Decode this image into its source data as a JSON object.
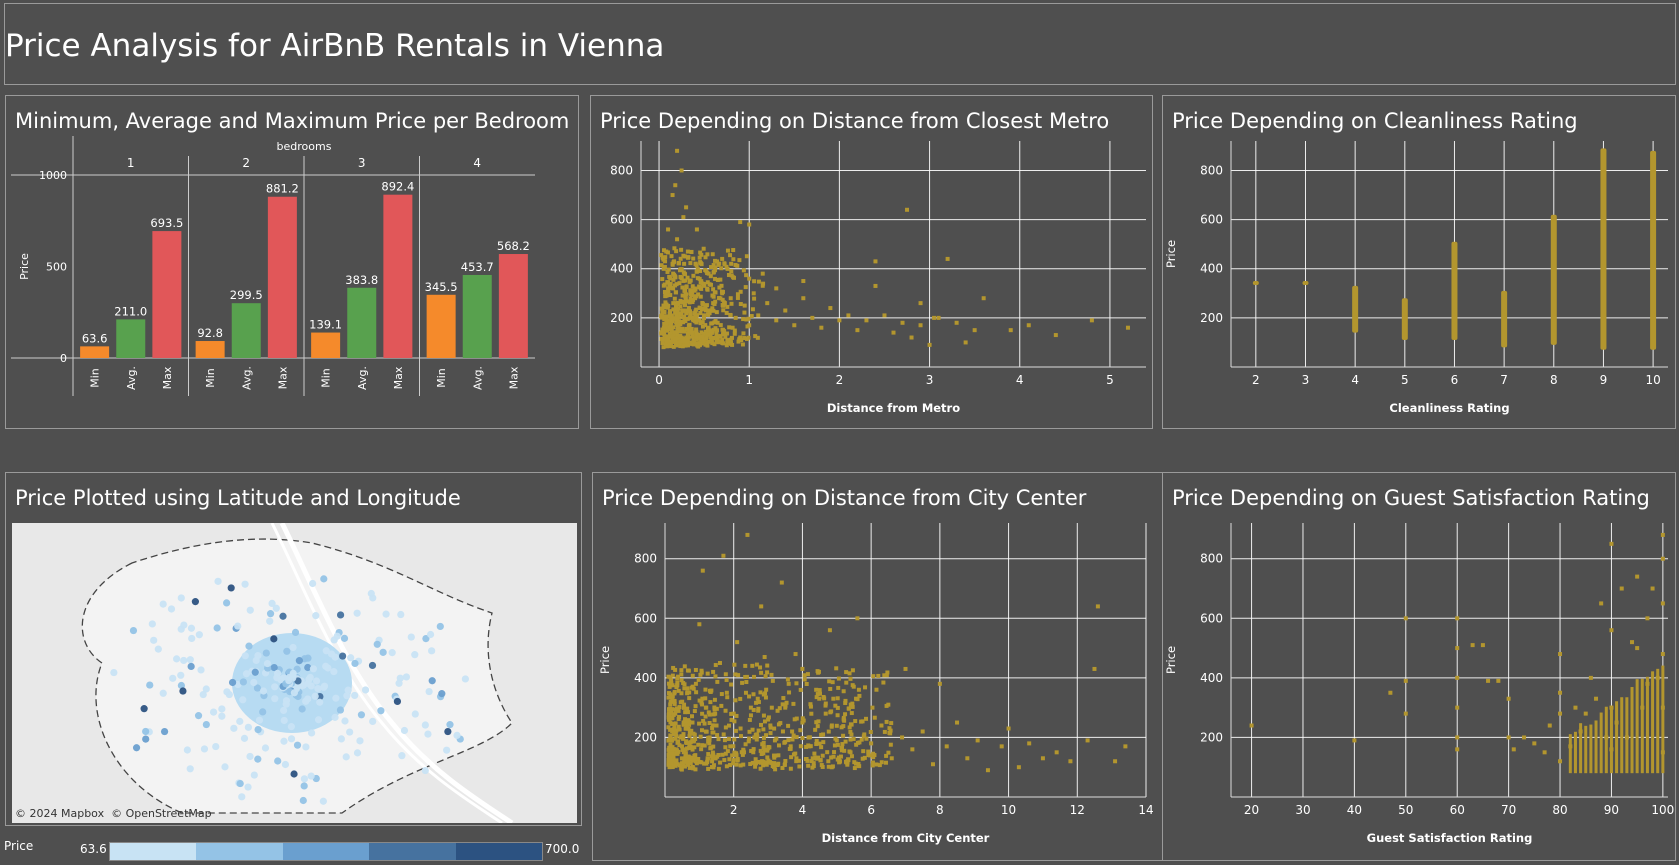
{
  "dashboard": {
    "title": "Price Analysis for AirBnB Rentals in Vienna"
  },
  "colors": {
    "background": "#4f4f4f",
    "scatter": "#b3962e",
    "min": "#f58a2b",
    "avg": "#58a14e",
    "max": "#e15759",
    "grid": "#ffffff"
  },
  "panels": {
    "bars": {
      "title": "Minimum, Average and Maximum Price per Bedroom"
    },
    "metro": {
      "title": "Price Depending on Distance from Closest Metro"
    },
    "clean": {
      "title": "Price Depending on Cleanliness Rating"
    },
    "map": {
      "title": "Price Plotted using Latitude and Longitude",
      "attribution": "© 2024 Mapbox  © OpenStreetMap"
    },
    "center": {
      "title": "Price Depending on Distance from City Center"
    },
    "guest": {
      "title": "Price Depending on Guest Satisfaction Rating"
    }
  },
  "legend": {
    "label": "Price",
    "min": "63.6",
    "max": "700.0",
    "colors": [
      "#c8e3f4",
      "#94c3e6",
      "#6a9fcf",
      "#46729f",
      "#2c5281"
    ]
  },
  "chart_data": [
    {
      "type": "bar",
      "id": "bars",
      "title": "Minimum, Average and Maximum Price per Bedroom",
      "column_header": "bedrooms",
      "bedrooms": [
        "1",
        "2",
        "3",
        "4"
      ],
      "measures": [
        "Min",
        "Avg.",
        "Max"
      ],
      "series": [
        {
          "name": "Min",
          "values": [
            63.6,
            92.8,
            139.1,
            345.5
          ]
        },
        {
          "name": "Avg.",
          "values": [
            211.0,
            299.5,
            383.8,
            453.7
          ]
        },
        {
          "name": "Max",
          "values": [
            693.5,
            881.2,
            892.4,
            568.2
          ]
        }
      ],
      "value_labels": [
        [
          "63.6",
          "211.0",
          "693.5"
        ],
        [
          "92.8",
          "299.5",
          "881.2"
        ],
        [
          "139.1",
          "383.8",
          "892.4"
        ],
        [
          "345.5",
          "453.7",
          "568.2"
        ]
      ],
      "ylabel": "Price",
      "yticks": [
        "0",
        "500",
        "1000"
      ],
      "ylim": [
        0,
        1000
      ]
    },
    {
      "type": "scatter",
      "id": "metro",
      "title": "Price Depending on Distance from Closest Metro",
      "xlabel": "Distance from Metro",
      "ylabel": "Price",
      "xlim": [
        -0.2,
        5.4
      ],
      "ylim": [
        0,
        920
      ],
      "xticks": [
        "0",
        "1",
        "2",
        "3",
        "4",
        "5"
      ],
      "yticks": [
        "200",
        "400",
        "600",
        "800"
      ],
      "points": [
        [
          0.05,
          250
        ],
        [
          0.1,
          320
        ],
        [
          0.12,
          180
        ],
        [
          0.15,
          420
        ],
        [
          0.18,
          260
        ],
        [
          0.2,
          520
        ],
        [
          0.22,
          200
        ],
        [
          0.25,
          360
        ],
        [
          0.27,
          610
        ],
        [
          0.3,
          230
        ],
        [
          0.32,
          470
        ],
        [
          0.35,
          300
        ],
        [
          0.38,
          190
        ],
        [
          0.4,
          280
        ],
        [
          0.42,
          560
        ],
        [
          0.45,
          240
        ],
        [
          0.48,
          340
        ],
        [
          0.5,
          210
        ],
        [
          0.55,
          380
        ],
        [
          0.6,
          260
        ],
        [
          0.65,
          180
        ],
        [
          0.7,
          300
        ],
        [
          0.75,
          220
        ],
        [
          0.8,
          420
        ],
        [
          0.85,
          200
        ],
        [
          0.9,
          590
        ],
        [
          0.95,
          250
        ],
        [
          1.0,
          170
        ],
        [
          1.05,
          300
        ],
        [
          1.1,
          210
        ],
        [
          1.2,
          260
        ],
        [
          1.3,
          190
        ],
        [
          1.4,
          230
        ],
        [
          1.5,
          170
        ],
        [
          1.6,
          280
        ],
        [
          1.7,
          200
        ],
        [
          1.8,
          160
        ],
        [
          1.9,
          240
        ],
        [
          2.0,
          190
        ],
        [
          2.1,
          210
        ],
        [
          2.2,
          150
        ],
        [
          2.3,
          190
        ],
        [
          2.4,
          330
        ],
        [
          2.5,
          210
        ],
        [
          2.6,
          140
        ],
        [
          2.7,
          180
        ],
        [
          2.75,
          640
        ],
        [
          2.8,
          120
        ],
        [
          2.9,
          170
        ],
        [
          3.0,
          90
        ],
        [
          3.1,
          200
        ],
        [
          3.2,
          440
        ],
        [
          3.3,
          180
        ],
        [
          3.4,
          100
        ],
        [
          3.5,
          150
        ],
        [
          3.6,
          280
        ],
        [
          3.9,
          150
        ],
        [
          4.1,
          170
        ],
        [
          4.4,
          130
        ],
        [
          4.8,
          190
        ],
        [
          5.2,
          160
        ],
        [
          0.2,
          880
        ],
        [
          0.25,
          800
        ],
        [
          0.15,
          700
        ],
        [
          0.3,
          650
        ],
        [
          0.12,
          130
        ],
        [
          0.2,
          90
        ],
        [
          0.3,
          110
        ],
        [
          0.4,
          140
        ],
        [
          0.55,
          160
        ],
        [
          0.9,
          120
        ],
        [
          1.3,
          320
        ],
        [
          1.6,
          350
        ],
        [
          2.4,
          430
        ],
        [
          0.08,
          470
        ],
        [
          0.18,
          740
        ],
        [
          0.1,
          560
        ],
        [
          0.35,
          150
        ],
        [
          0.7,
          440
        ],
        [
          1.0,
          580
        ],
        [
          1.15,
          380
        ],
        [
          2.9,
          260
        ],
        [
          3.05,
          200
        ]
      ]
    },
    {
      "type": "scatter",
      "id": "clean",
      "title": "Price Depending on Cleanliness Rating",
      "xlabel": "Cleanliness Rating",
      "ylabel": "Price",
      "xlim": [
        1.5,
        10.3
      ],
      "ylim": [
        0,
        920
      ],
      "xticks": [
        "2",
        "3",
        "4",
        "5",
        "6",
        "7",
        "8",
        "9",
        "10"
      ],
      "yticks": [
        "200",
        "400",
        "600",
        "800"
      ],
      "strips": [
        [
          2,
          350,
          350
        ],
        [
          3,
          350,
          350
        ],
        [
          4,
          140,
          330
        ],
        [
          5,
          110,
          280
        ],
        [
          6,
          110,
          510
        ],
        [
          7,
          80,
          310
        ],
        [
          8,
          90,
          620
        ],
        [
          9,
          70,
          890
        ],
        [
          10,
          70,
          880
        ]
      ]
    },
    {
      "type": "scatter",
      "id": "center",
      "title": "Price Depending on Distance from City Center",
      "xlabel": "Distance from City Center",
      "ylabel": "Price",
      "xlim": [
        0,
        14
      ],
      "ylim": [
        0,
        920
      ],
      "xticks": [
        "2",
        "4",
        "6",
        "8",
        "10",
        "12",
        "14"
      ],
      "yticks": [
        "200",
        "400",
        "600",
        "800"
      ],
      "points": [
        [
          0.3,
          280
        ],
        [
          0.5,
          320
        ],
        [
          0.8,
          250
        ],
        [
          1.0,
          580
        ],
        [
          1.1,
          760
        ],
        [
          1.2,
          300
        ],
        [
          1.4,
          420
        ],
        [
          1.5,
          240
        ],
        [
          1.7,
          810
        ],
        [
          1.8,
          350
        ],
        [
          2.0,
          280
        ],
        [
          2.1,
          520
        ],
        [
          2.2,
          230
        ],
        [
          2.4,
          880
        ],
        [
          2.5,
          300
        ],
        [
          2.6,
          200
        ],
        [
          2.8,
          640
        ],
        [
          3.0,
          260
        ],
        [
          3.1,
          410
        ],
        [
          3.2,
          190
        ],
        [
          3.4,
          720
        ],
        [
          3.5,
          300
        ],
        [
          3.7,
          220
        ],
        [
          3.8,
          480
        ],
        [
          4.0,
          250
        ],
        [
          4.2,
          170
        ],
        [
          4.4,
          360
        ],
        [
          4.6,
          210
        ],
        [
          4.8,
          560
        ],
        [
          5.0,
          190
        ],
        [
          5.2,
          260
        ],
        [
          5.4,
          150
        ],
        [
          5.6,
          600
        ],
        [
          5.8,
          210
        ],
        [
          6.0,
          180
        ],
        [
          6.3,
          240
        ],
        [
          6.6,
          130
        ],
        [
          6.9,
          200
        ],
        [
          7.2,
          160
        ],
        [
          7.5,
          220
        ],
        [
          7.8,
          110
        ],
        [
          8.0,
          380
        ],
        [
          8.2,
          170
        ],
        [
          8.5,
          250
        ],
        [
          8.8,
          130
        ],
        [
          9.1,
          190
        ],
        [
          9.4,
          90
        ],
        [
          9.8,
          170
        ],
        [
          10.0,
          230
        ],
        [
          10.3,
          100
        ],
        [
          10.6,
          180
        ],
        [
          11.0,
          130
        ],
        [
          11.4,
          150
        ],
        [
          11.8,
          120
        ],
        [
          12.3,
          190
        ],
        [
          12.5,
          430
        ],
        [
          12.6,
          640
        ],
        [
          13.1,
          120
        ],
        [
          13.4,
          170
        ],
        [
          0.6,
          160
        ],
        [
          1.3,
          200
        ],
        [
          2.3,
          150
        ],
        [
          3.3,
          140
        ],
        [
          4.3,
          130
        ],
        [
          5.3,
          120
        ],
        [
          6.5,
          310
        ],
        [
          7.0,
          430
        ],
        [
          2.9,
          470
        ],
        [
          1.6,
          450
        ],
        [
          3.6,
          380
        ],
        [
          4.9,
          330
        ],
        [
          0.9,
          380
        ],
        [
          2.7,
          330
        ],
        [
          1.9,
          170
        ]
      ]
    },
    {
      "type": "scatter",
      "id": "guest",
      "title": "Price Depending on Guest Satisfaction Rating",
      "xlabel": "Guest Satisfaction Rating",
      "ylabel": "Price",
      "xlim": [
        16,
        101
      ],
      "ylim": [
        0,
        920
      ],
      "xticks": [
        "20",
        "30",
        "40",
        "50",
        "60",
        "70",
        "80",
        "90",
        "100"
      ],
      "yticks": [
        "200",
        "400",
        "600",
        "800"
      ],
      "points": [
        [
          20,
          240
        ],
        [
          40,
          190
        ],
        [
          47,
          350
        ],
        [
          50,
          600
        ],
        [
          50,
          390
        ],
        [
          50,
          280
        ],
        [
          60,
          200
        ],
        [
          60,
          300
        ],
        [
          60,
          400
        ],
        [
          60,
          500
        ],
        [
          60,
          600
        ],
        [
          60,
          160
        ],
        [
          63,
          510
        ],
        [
          65,
          510
        ],
        [
          66,
          390
        ],
        [
          68,
          390
        ],
        [
          70,
          330
        ],
        [
          70,
          200
        ],
        [
          71,
          160
        ],
        [
          73,
          200
        ],
        [
          75,
          180
        ],
        [
          77,
          150
        ],
        [
          78,
          240
        ],
        [
          80,
          120
        ],
        [
          80,
          350
        ],
        [
          80,
          280
        ],
        [
          80,
          480
        ],
        [
          82,
          170
        ],
        [
          84,
          220
        ],
        [
          86,
          400
        ],
        [
          88,
          650
        ],
        [
          90,
          160
        ],
        [
          90,
          300
        ],
        [
          90,
          560
        ],
        [
          90,
          850
        ],
        [
          91,
          250
        ],
        [
          92,
          700
        ],
        [
          93,
          200
        ],
        [
          94,
          520
        ],
        [
          95,
          740
        ],
        [
          96,
          300
        ],
        [
          97,
          600
        ],
        [
          98,
          700
        ],
        [
          99,
          400
        ],
        [
          100,
          880
        ],
        [
          100,
          800
        ],
        [
          100,
          650
        ],
        [
          100,
          480
        ],
        [
          100,
          300
        ],
        [
          100,
          150
        ],
        [
          85,
          280
        ],
        [
          83,
          300
        ],
        [
          87,
          330
        ],
        [
          89,
          200
        ],
        [
          95,
          500
        ],
        [
          97,
          380
        ]
      ],
      "strip_band": [
        [
          82,
          101,
          80,
          450
        ]
      ]
    },
    {
      "type": "scatter",
      "id": "map",
      "title": "Price Plotted using Latitude and Longitude",
      "legend_label": "Price",
      "color_range": [
        63.6,
        700.0
      ]
    }
  ]
}
